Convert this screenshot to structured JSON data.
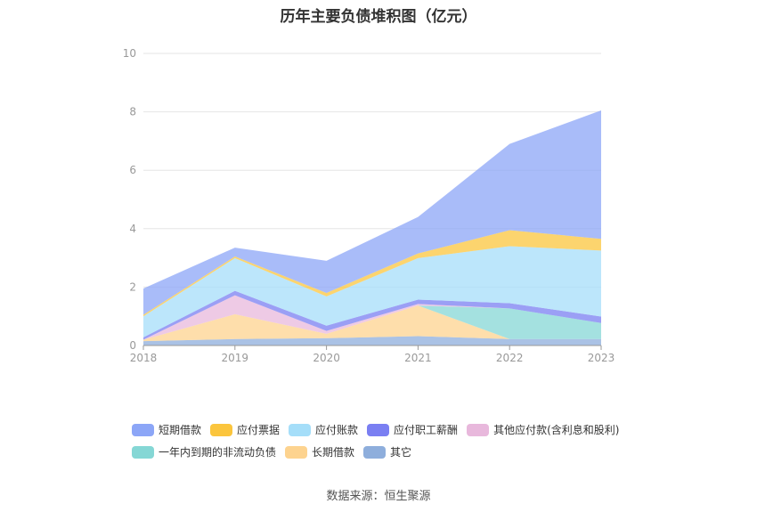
{
  "title": "历年主要负债堆积图（亿元）",
  "source": "数据来源：恒生聚源",
  "chart_data": {
    "type": "area",
    "stacked": true,
    "title": "历年主要负债堆积图（亿元）",
    "x": [
      "2018",
      "2019",
      "2020",
      "2021",
      "2022",
      "2023"
    ],
    "ylim": [
      0,
      10
    ],
    "yticks": [
      0,
      2,
      4,
      6,
      8,
      10
    ],
    "grid": true,
    "legend_position": "bottom",
    "series": [
      {
        "name": "其它",
        "color": "#8eaedc",
        "values": [
          0.15,
          0.22,
          0.25,
          0.32,
          0.22,
          0.22
        ]
      },
      {
        "name": "长期借款",
        "color": "#fdd38f",
        "values": [
          0.05,
          0.85,
          0.15,
          1.05,
          0.0,
          0.0
        ]
      },
      {
        "name": "一年内到期的非流动负债",
        "color": "#85d7d5",
        "values": [
          0.0,
          0.0,
          0.0,
          0.0,
          1.05,
          0.55
        ]
      },
      {
        "name": "其他应付款(含利息和股利)",
        "color": "#e8b8dc",
        "values": [
          0.0,
          0.65,
          0.1,
          0.05,
          0.0,
          0.0
        ]
      },
      {
        "name": "应付职工薪酬",
        "color": "#7a7ff2",
        "values": [
          0.08,
          0.15,
          0.18,
          0.15,
          0.18,
          0.22
        ]
      },
      {
        "name": "应付账款",
        "color": "#a5def9",
        "values": [
          0.72,
          1.12,
          1.0,
          1.42,
          1.95,
          2.26
        ]
      },
      {
        "name": "应付票据",
        "color": "#fbc53d",
        "values": [
          0.05,
          0.06,
          0.12,
          0.16,
          0.55,
          0.4
        ]
      },
      {
        "name": "短期借款",
        "color": "#8ca6f7",
        "values": [
          0.9,
          0.3,
          1.1,
          1.25,
          2.95,
          4.4
        ]
      }
    ]
  },
  "legend": {
    "row1": [
      {
        "label": "短期借款",
        "color": "#8ca6f7"
      },
      {
        "label": "应付票据",
        "color": "#fbc53d"
      },
      {
        "label": "应付账款",
        "color": "#a5def9"
      },
      {
        "label": "应付职工薪酬",
        "color": "#7a7ff2"
      },
      {
        "label": "其他应付款(含利息和股利)",
        "color": "#e8b8dc"
      }
    ],
    "row2": [
      {
        "label": "一年内到期的非流动负债",
        "color": "#85d7d5"
      },
      {
        "label": "长期借款",
        "color": "#fdd38f"
      },
      {
        "label": "其它",
        "color": "#8eaedc"
      }
    ]
  }
}
